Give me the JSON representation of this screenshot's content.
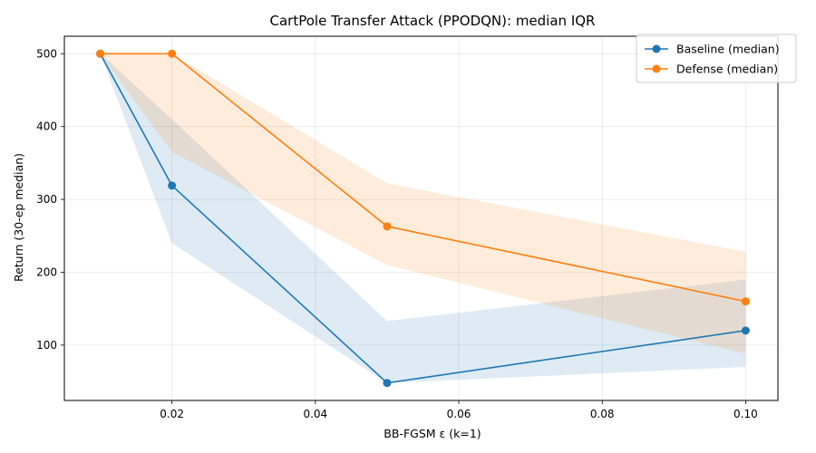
{
  "chart_data": {
    "type": "line",
    "title": "CartPole  Transfer Attack (PPODQN): median  IQR",
    "xlabel": "BB-FGSM ε (k=1)",
    "ylabel": "Return (30-ep median)",
    "xlim": [
      0.005,
      0.1045
    ],
    "ylim": [
      24,
      524
    ],
    "x_ticks": [
      0.02,
      0.04,
      0.06,
      0.08,
      0.1
    ],
    "x_tick_labels": [
      "0.02",
      "0.04",
      "0.06",
      "0.08",
      "0.10"
    ],
    "y_ticks": [
      100,
      200,
      300,
      400,
      500
    ],
    "y_tick_labels": [
      "100",
      "200",
      "300",
      "400",
      "500"
    ],
    "grid": true,
    "legend_position": "top-right",
    "x": [
      0.01,
      0.02,
      0.05,
      0.1
    ],
    "series": [
      {
        "name": "Baseline (median)",
        "color": "#1f77b4",
        "band_color": "#1f77b4",
        "values": [
          500,
          319,
          48,
          120
        ],
        "iqr_low": [
          500,
          240,
          48,
          70
        ],
        "iqr_high": [
          500,
          410,
          133,
          190
        ]
      },
      {
        "name": "Defense (median)",
        "color": "#ff7f0e",
        "band_color": "#ff7f0e",
        "values": [
          500,
          500,
          263,
          160
        ],
        "iqr_low": [
          500,
          365,
          210,
          88
        ],
        "iqr_high": [
          500,
          500,
          322,
          228
        ]
      }
    ]
  }
}
